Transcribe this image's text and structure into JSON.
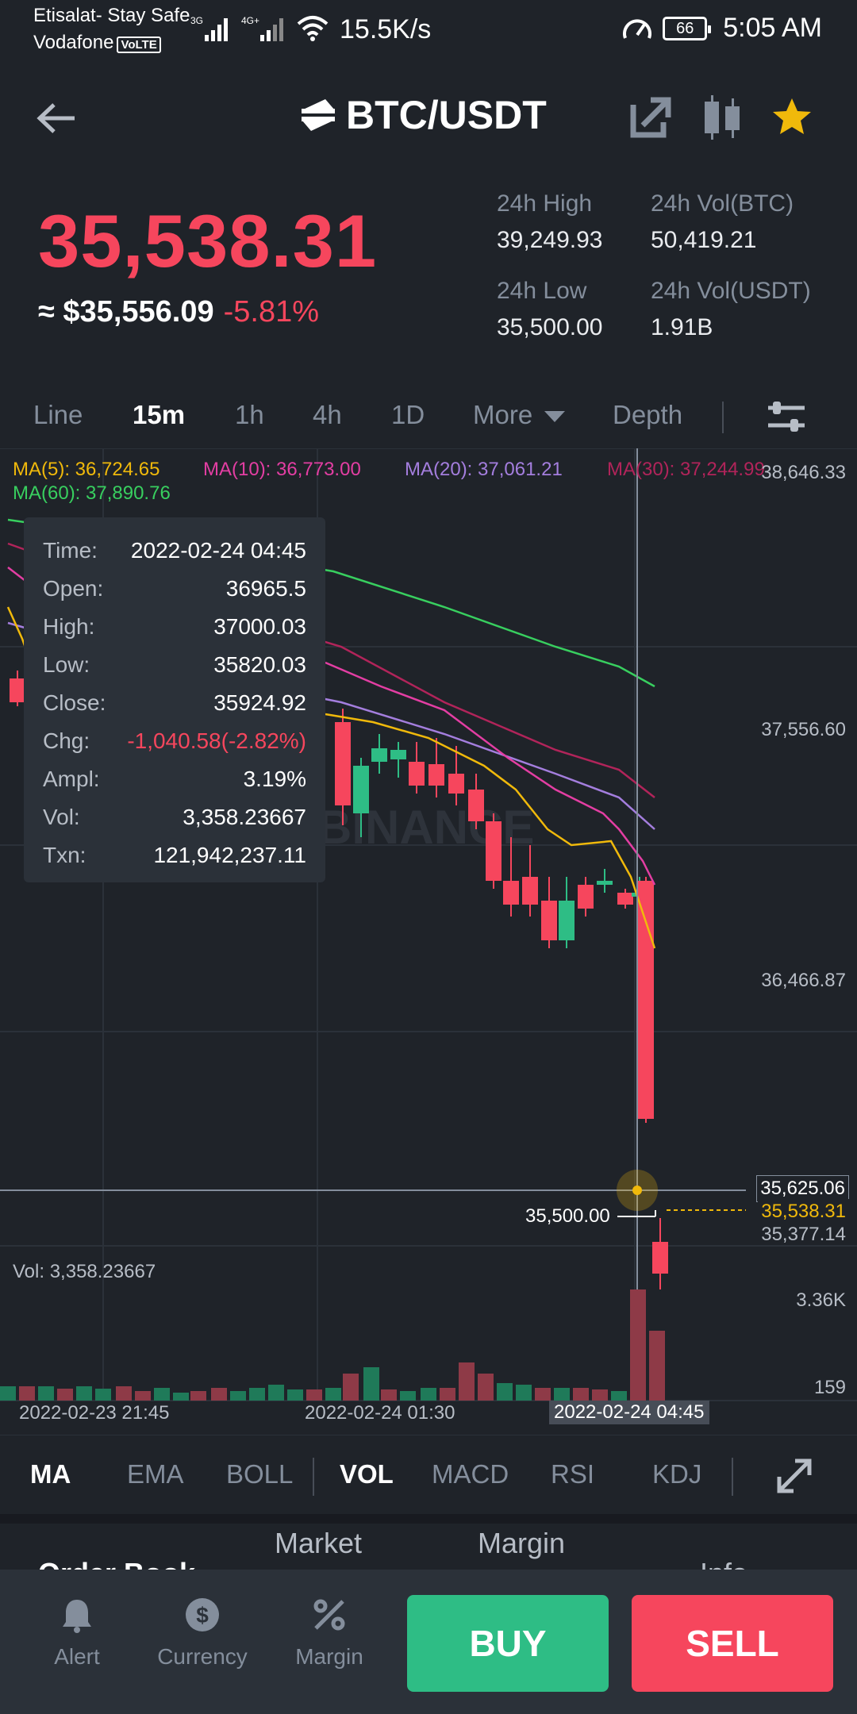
{
  "status_bar": {
    "carrier1": "Etisalat- Stay Safe",
    "carrier2": "Vodafone",
    "volte": "VoLTE",
    "net1": "3G",
    "net2": "4G+",
    "speed": "15.5K/s",
    "battery": "66",
    "time": "5:05 AM"
  },
  "header": {
    "pair": "BTC/USDT",
    "icons": [
      "back-arrow-icon",
      "swap-icon",
      "share-icon",
      "candle-icon",
      "star-icon"
    ]
  },
  "price": {
    "last": "35,538.31",
    "approx_usd": "≈ $35,556.09",
    "change": "-5.81%"
  },
  "stats": {
    "high_label": "24h High",
    "high_value": "39,249.93",
    "volbtc_label": "24h Vol(BTC)",
    "volbtc_value": "50,419.21",
    "low_label": "24h Low",
    "low_value": "35,500.00",
    "volusdt_label": "24h Vol(USDT)",
    "volusdt_value": "1.91B"
  },
  "interval_tabs": [
    "Line",
    "15m",
    "1h",
    "4h",
    "1D",
    "More",
    "Depth"
  ],
  "active_interval": "15m",
  "ma": {
    "ma5": "MA(5): 36,724.65",
    "ma10": "MA(10): 36,773.00",
    "ma20": "MA(20): 37,061.21",
    "ma30": "MA(30): 37,244.99",
    "ma60": "MA(60): 37,890.76"
  },
  "colors": {
    "up": "#2ebd85",
    "down": "#f6465d",
    "ma5": "#f0b90b",
    "ma10": "#e33ea3",
    "ma20": "#a47ede",
    "ma30": "#b1245a",
    "ma60": "#38cf5f",
    "bg": "#1f2329"
  },
  "axis": {
    "p1": "38,646.33",
    "p2": "37,556.60",
    "p3": "36,466.87",
    "p4": "35,377.14",
    "crosshair_price": "35,625.06",
    "last_price_tag": "35,538.31",
    "low_marker": "35,500.00",
    "vol_top": "3.36K",
    "vol_bottom": "159",
    "t1": "2022-02-23 21:45",
    "t2": "2022-02-24 01:30",
    "t3": "2022-02-24 04:45"
  },
  "volume_label": "Vol: 3,358.23667",
  "watermark": "BINANCE",
  "tooltip": [
    {
      "k": "Time:",
      "v": "2022-02-24 04:45"
    },
    {
      "k": "Open:",
      "v": "36965.5"
    },
    {
      "k": "High:",
      "v": "37000.03"
    },
    {
      "k": "Low:",
      "v": "35820.03"
    },
    {
      "k": "Close:",
      "v": "35924.92"
    },
    {
      "k": "Chg:",
      "v": "-1,040.58(-2.82%)"
    },
    {
      "k": "Ampl:",
      "v": "3.19%"
    },
    {
      "k": "Vol:",
      "v": "3,358.23667"
    },
    {
      "k": "Txn:",
      "v": "121,942,237.11"
    }
  ],
  "indicator_tabs": [
    "MA",
    "EMA",
    "BOLL",
    "VOL",
    "MACD",
    "RSI",
    "KDJ"
  ],
  "subtabs": [
    "Order Book",
    "Market",
    "Margin",
    "Info"
  ],
  "bottom_bar": {
    "alert": "Alert",
    "currency": "Currency",
    "margin": "Margin",
    "buy": "BUY",
    "sell": "SELL"
  }
}
